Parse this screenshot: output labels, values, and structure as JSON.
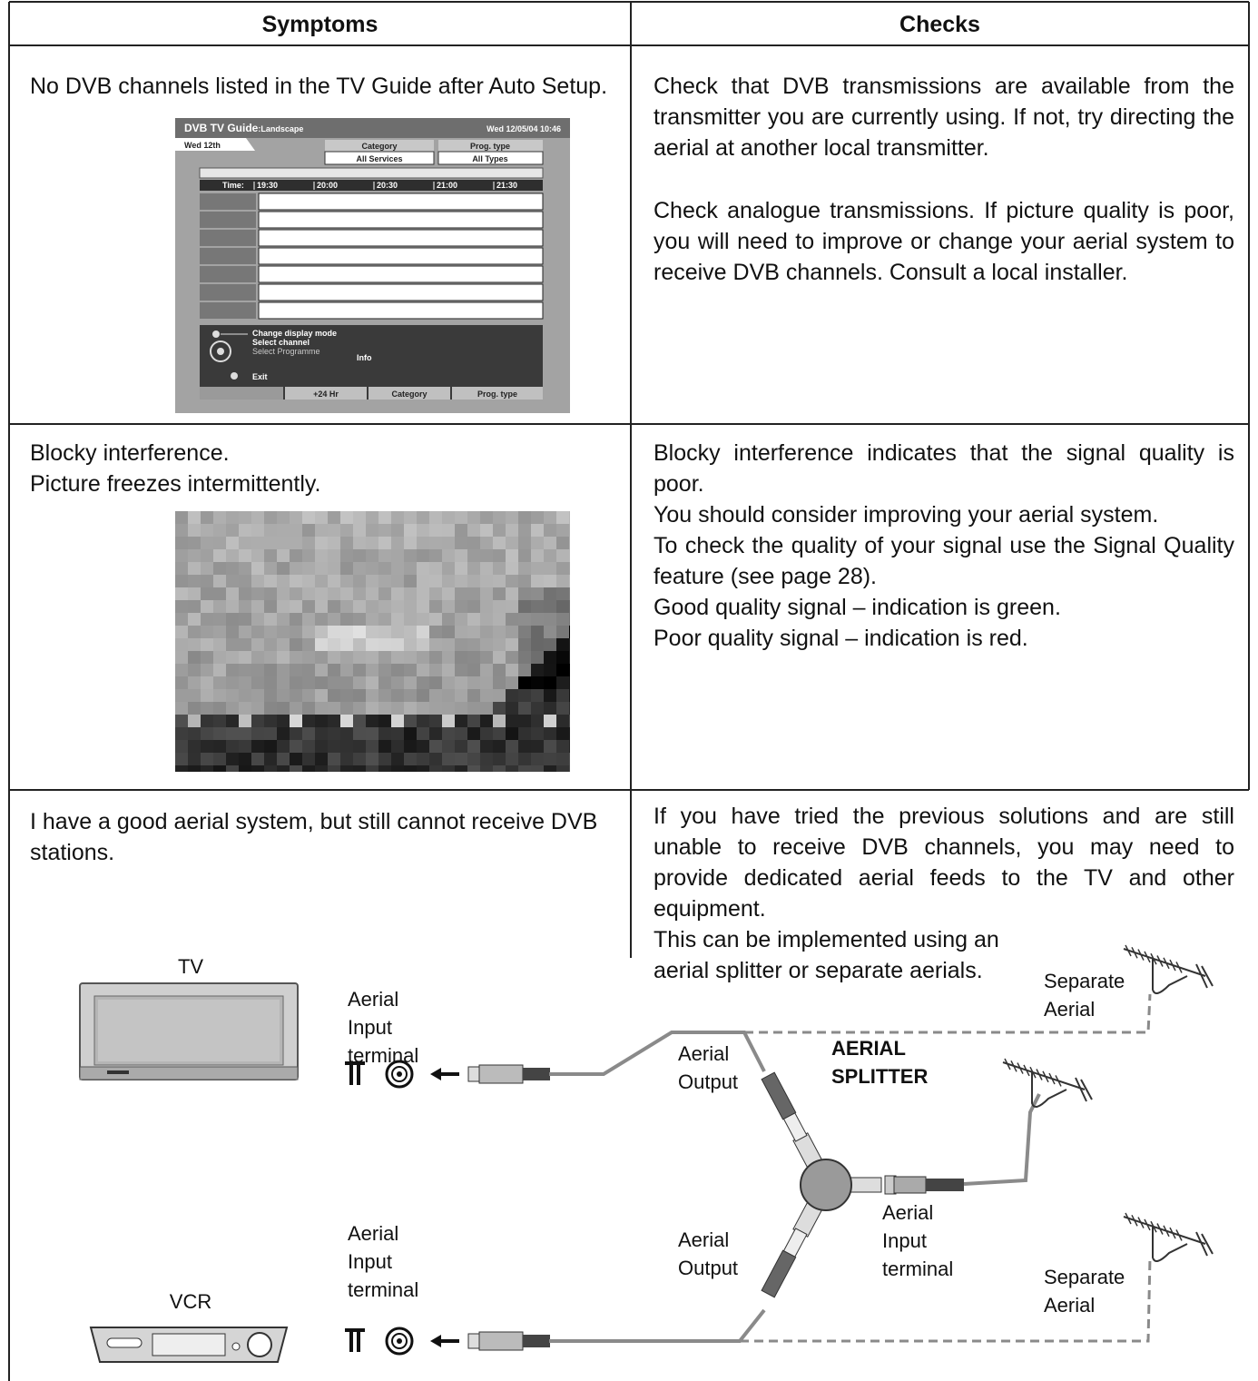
{
  "table": {
    "headers": [
      "Symptoms",
      "Checks"
    ],
    "rows": [
      {
        "symptom": [
          "No DVB channels listed in the TV Guide after Auto Setup."
        ],
        "checks": [
          "Check that DVB transmissions are available from the transmitter you are currently using. If not, try directing the aerial at another local transmitter.",
          "Check analogue transmissions. If picture quality is poor, you will need to improve or change your aerial system to receive DVB channels. Consult a local installer."
        ]
      },
      {
        "symptom": [
          "Blocky interference.",
          "Picture freezes intermittently."
        ],
        "checks": [
          "Blocky interference indicates that the signal quality is poor.",
          "You should consider improving your aerial system.",
          "To check the quality of your signal use the Signal Quality feature (see page 28).",
          "Good quality signal – indication is green.",
          "Poor quality signal – indication is red."
        ]
      },
      {
        "symptom": [
          "I have a good aerial system, but still cannot receive DVB stations."
        ],
        "checks": [
          "If you have tried the previous solutions and are still unable to receive DVB channels, you may need to provide dedicated aerial feeds to the TV and other equipment.",
          "This can be implemented using an aerial splitter or separate aerials."
        ]
      }
    ]
  },
  "tv_guide": {
    "title": "DVB TV Guide",
    "mode": ":Landscape",
    "datetime": "Wed 12/05/04 10:46",
    "day_tab": "Wed 12th",
    "category_label": "Category",
    "category_value": "All Services",
    "prog_type_label": "Prog. type",
    "prog_type_value": "All Types",
    "time_label": "Time:",
    "times": [
      "19:30",
      "20:00",
      "20:30",
      "21:00",
      "21:30"
    ],
    "legend": [
      "Change display mode",
      "Select channel",
      "Select Programme",
      "Info",
      "Exit"
    ],
    "buttons": [
      "+24 Hr",
      "Category",
      "Prog. type"
    ]
  },
  "diagram": {
    "tv": "TV",
    "vcr": "VCR",
    "tv_input": [
      "Aerial",
      "Input",
      "terminal"
    ],
    "vcr_input": [
      "Aerial",
      "Input",
      "terminal"
    ],
    "output_upper": [
      "Aerial",
      "Output"
    ],
    "output_lower": [
      "Aerial",
      "Output"
    ],
    "splitter": [
      "AERIAL",
      "SPLITTER"
    ],
    "splitter_input": [
      "Aerial",
      "Input",
      "terminal"
    ],
    "separate_upper": [
      "Separate",
      "Aerial"
    ],
    "separate_lower": [
      "Separate",
      "Aerial"
    ]
  }
}
